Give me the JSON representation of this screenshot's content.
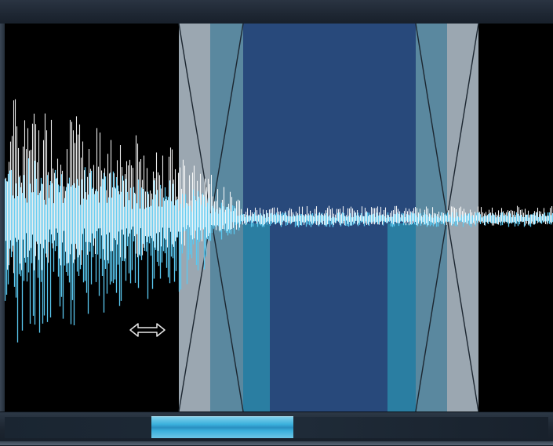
{
  "icons": {
    "resize_cursor": "horizontal-resize-cursor-icon"
  },
  "colors": {
    "background": "#000000",
    "waveform_highlight": "#ffffff",
    "waveform_body": "#5ac8f0",
    "region_outer": "#9aa6b0",
    "region_mid": "#5a8aa6",
    "region_inner": "#2a4a7c",
    "region_accent": "#2a80a4",
    "scroll_thumb": "#3ab0dc"
  },
  "scrollbar": {
    "thumb_start_fraction": 0.27,
    "thumb_size_fraction": 0.26
  }
}
